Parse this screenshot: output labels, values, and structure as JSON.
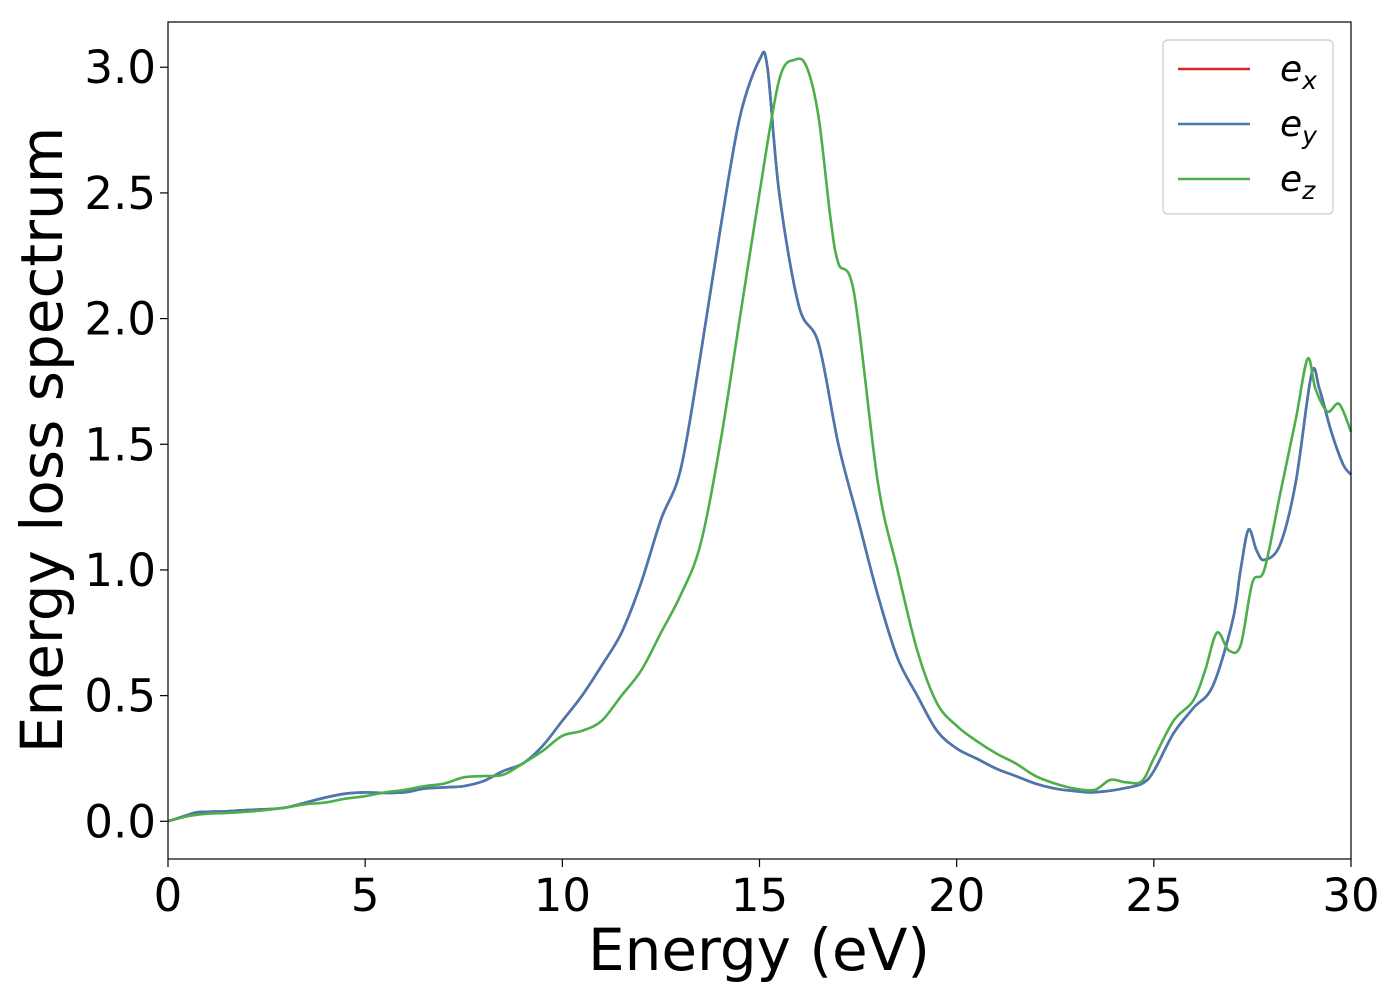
{
  "chart_data": {
    "type": "line",
    "xlabel": "Energy (eV)",
    "ylabel": "Energy loss spectrum",
    "xlim": [
      0,
      30
    ],
    "ylim": [
      -0.15,
      3.18
    ],
    "grid": false,
    "legend_position": "top-right",
    "x_ticks": [
      "0",
      "5",
      "10",
      "15",
      "20",
      "25",
      "30"
    ],
    "y_ticks": [
      "0.0",
      "0.5",
      "1.0",
      "1.5",
      "2.0",
      "2.5",
      "3.0"
    ],
    "series": [
      {
        "name": "e_x",
        "legend_base": "e",
        "legend_sub": "x",
        "color": "#d62728",
        "x": [
          0,
          0.5,
          0.7,
          1,
          1.5,
          2,
          2.5,
          3,
          3.5,
          4,
          4.5,
          5,
          5.5,
          6,
          6.5,
          7,
          7.5,
          8,
          8.5,
          9,
          9.5,
          10,
          10.5,
          11,
          11.5,
          12,
          12.5,
          13,
          13.5,
          14,
          14.5,
          15,
          15.2,
          15.5,
          16,
          16.5,
          17,
          17.5,
          18,
          18.5,
          19,
          19.5,
          20,
          20.5,
          21,
          21.5,
          22,
          22.5,
          23,
          23.4,
          23.8,
          24.2,
          24.7,
          25,
          25.5,
          26,
          26.5,
          27,
          27.2,
          27.4,
          27.6,
          27.8,
          28.2,
          28.6,
          29,
          29.2,
          29.5,
          29.8,
          30
        ],
        "values": [
          0,
          0.025,
          0.035,
          0.038,
          0.04,
          0.045,
          0.048,
          0.055,
          0.075,
          0.095,
          0.11,
          0.115,
          0.113,
          0.115,
          0.13,
          0.135,
          0.14,
          0.16,
          0.2,
          0.23,
          0.3,
          0.4,
          0.5,
          0.62,
          0.75,
          0.95,
          1.2,
          1.4,
          1.85,
          2.35,
          2.8,
          3.03,
          3.0,
          2.5,
          2.05,
          1.9,
          1.5,
          1.2,
          0.9,
          0.65,
          0.5,
          0.36,
          0.29,
          0.25,
          0.21,
          0.18,
          0.15,
          0.13,
          0.12,
          0.115,
          0.12,
          0.13,
          0.15,
          0.2,
          0.35,
          0.45,
          0.54,
          0.8,
          1.0,
          1.16,
          1.08,
          1.04,
          1.1,
          1.35,
          1.78,
          1.72,
          1.55,
          1.42,
          1.38
        ]
      },
      {
        "name": "e_y",
        "legend_base": "e",
        "legend_sub": "y",
        "color": "#4878b0",
        "x": [
          0,
          0.5,
          0.7,
          1,
          1.5,
          2,
          2.5,
          3,
          3.5,
          4,
          4.5,
          5,
          5.5,
          6,
          6.5,
          7,
          7.5,
          8,
          8.5,
          9,
          9.5,
          10,
          10.5,
          11,
          11.5,
          12,
          12.5,
          13,
          13.5,
          14,
          14.5,
          15,
          15.2,
          15.5,
          16,
          16.5,
          17,
          17.5,
          18,
          18.5,
          19,
          19.5,
          20,
          20.5,
          21,
          21.5,
          22,
          22.5,
          23,
          23.4,
          23.8,
          24.2,
          24.7,
          25,
          25.5,
          26,
          26.5,
          27,
          27.2,
          27.4,
          27.6,
          27.8,
          28.2,
          28.6,
          29,
          29.2,
          29.5,
          29.8,
          30
        ],
        "values": [
          0,
          0.025,
          0.035,
          0.038,
          0.04,
          0.045,
          0.048,
          0.055,
          0.075,
          0.095,
          0.11,
          0.115,
          0.113,
          0.115,
          0.13,
          0.135,
          0.14,
          0.16,
          0.2,
          0.23,
          0.3,
          0.4,
          0.5,
          0.62,
          0.75,
          0.95,
          1.2,
          1.4,
          1.85,
          2.35,
          2.8,
          3.03,
          3.0,
          2.5,
          2.05,
          1.9,
          1.5,
          1.2,
          0.9,
          0.65,
          0.5,
          0.36,
          0.29,
          0.25,
          0.21,
          0.18,
          0.15,
          0.13,
          0.12,
          0.115,
          0.12,
          0.13,
          0.15,
          0.2,
          0.35,
          0.45,
          0.54,
          0.8,
          1.0,
          1.16,
          1.08,
          1.04,
          1.1,
          1.35,
          1.78,
          1.72,
          1.55,
          1.42,
          1.38
        ]
      },
      {
        "name": "e_z",
        "legend_base": "e",
        "legend_sub": "z",
        "color": "#4daf4a",
        "x": [
          0,
          0.5,
          1,
          1.5,
          2,
          2.5,
          3,
          3.5,
          4,
          4.5,
          5,
          5.5,
          6,
          6.5,
          7,
          7.5,
          8,
          8.5,
          9,
          9.5,
          10,
          10.5,
          11,
          11.5,
          12,
          12.5,
          13,
          13.5,
          14,
          14.5,
          15,
          15.5,
          15.9,
          16.2,
          16.5,
          16.8,
          17,
          17.4,
          18,
          18.5,
          19,
          19.5,
          20,
          20.5,
          21,
          21.5,
          22,
          22.5,
          23,
          23.5,
          23.9,
          24.3,
          24.7,
          25,
          25.5,
          26,
          26.3,
          26.6,
          26.9,
          27.2,
          27.5,
          27.8,
          28.2,
          28.6,
          28.9,
          29.1,
          29.4,
          29.7,
          30
        ],
        "values": [
          0,
          0.02,
          0.03,
          0.033,
          0.038,
          0.045,
          0.055,
          0.068,
          0.075,
          0.09,
          0.1,
          0.115,
          0.125,
          0.14,
          0.15,
          0.175,
          0.18,
          0.185,
          0.23,
          0.28,
          0.34,
          0.36,
          0.4,
          0.5,
          0.6,
          0.75,
          0.9,
          1.1,
          1.5,
          2.0,
          2.5,
          2.95,
          3.03,
          3.0,
          2.8,
          2.4,
          2.22,
          2.1,
          1.35,
          1.0,
          0.68,
          0.47,
          0.38,
          0.32,
          0.27,
          0.23,
          0.18,
          0.15,
          0.13,
          0.125,
          0.165,
          0.155,
          0.16,
          0.25,
          0.4,
          0.48,
          0.6,
          0.75,
          0.68,
          0.7,
          0.95,
          1.0,
          1.3,
          1.6,
          1.84,
          1.72,
          1.63,
          1.66,
          1.55
        ]
      }
    ]
  }
}
